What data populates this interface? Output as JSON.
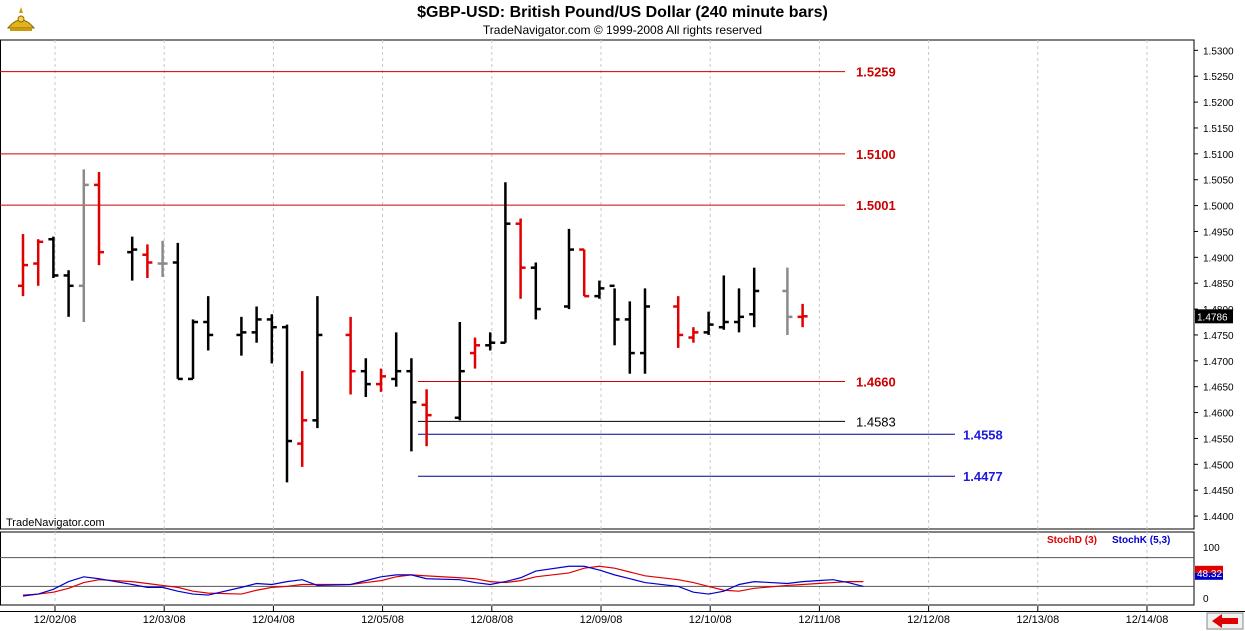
{
  "header": {
    "title": "$GBP-USD:  British Pound/US Dollar  (240 minute bars)",
    "subtitle": "TradeNavigator.com © 1999-2008 All rights reserved",
    "watermark": "TradeNavigator.com"
  },
  "colors": {
    "up": "#e00000",
    "down": "#000000",
    "neutral": "#8a8a8a",
    "stochD": "#e00000",
    "stochK": "#0000cc",
    "grid": "#c8c8c8",
    "level_red": "#cc0000",
    "level_black": "#000000",
    "level_blue": "#00008b",
    "label_blue": "#1a1adf"
  },
  "nav": {
    "arrow_icon": "red-left-arrow-icon"
  },
  "chart_data": {
    "type": "ohlc",
    "price_axis": {
      "min": 1.4375,
      "max": 1.532,
      "ticks": [
        "1.4400",
        "1.4450",
        "1.4500",
        "1.4550",
        "1.4600",
        "1.4650",
        "1.4700",
        "1.4750",
        "1.4800",
        "1.4850",
        "1.4900",
        "1.4950",
        "1.5000",
        "1.5050",
        "1.5100",
        "1.5150",
        "1.5200",
        "1.5250",
        "1.5300"
      ]
    },
    "current_price": {
      "label": "1.4786",
      "value": 1.4786
    },
    "x_axis": {
      "labels": [
        "12/02/08",
        "12/03/08",
        "12/04/08",
        "12/05/08",
        "12/08/08",
        "12/09/08",
        "12/10/08",
        "12/11/08",
        "12/12/08",
        "12/13/08",
        "12/14/08"
      ]
    },
    "bars": [
      {
        "d": 0,
        "i": 0,
        "o": 1.4845,
        "h": 1.4945,
        "l": 1.4825,
        "c": 1.4885,
        "col": "up"
      },
      {
        "d": 0,
        "i": 1,
        "o": 1.4888,
        "h": 1.4935,
        "l": 1.4845,
        "c": 1.493,
        "col": "up"
      },
      {
        "d": 0,
        "i": 2,
        "o": 1.4935,
        "h": 1.494,
        "l": 1.486,
        "c": 1.4865,
        "col": "down"
      },
      {
        "d": 0,
        "i": 3,
        "o": 1.4865,
        "h": 1.4875,
        "l": 1.4785,
        "c": 1.4845,
        "col": "down"
      },
      {
        "d": 0,
        "i": 4,
        "o": 1.4845,
        "h": 1.507,
        "l": 1.4775,
        "c": 1.504,
        "col": "neutral"
      },
      {
        "d": 0,
        "i": 5,
        "o": 1.504,
        "h": 1.5065,
        "l": 1.4885,
        "c": 1.491,
        "col": "up"
      },
      {
        "d": 1,
        "i": 0,
        "o": 1.491,
        "h": 1.494,
        "l": 1.4855,
        "c": 1.4915,
        "col": "down"
      },
      {
        "d": 1,
        "i": 1,
        "o": 1.4905,
        "h": 1.4925,
        "l": 1.486,
        "c": 1.489,
        "col": "up"
      },
      {
        "d": 1,
        "i": 2,
        "o": 1.4888,
        "h": 1.4932,
        "l": 1.4862,
        "c": 1.4888,
        "col": "neutral"
      },
      {
        "d": 1,
        "i": 3,
        "o": 1.489,
        "h": 1.4928,
        "l": 1.4665,
        "c": 1.4665,
        "col": "down"
      },
      {
        "d": 1,
        "i": 4,
        "o": 1.4665,
        "h": 1.478,
        "l": 1.4665,
        "c": 1.4775,
        "col": "down"
      },
      {
        "d": 1,
        "i": 5,
        "o": 1.4775,
        "h": 1.4825,
        "l": 1.472,
        "c": 1.475,
        "col": "down"
      },
      {
        "d": 2,
        "i": 0,
        "o": 1.475,
        "h": 1.4785,
        "l": 1.471,
        "c": 1.4755,
        "col": "down"
      },
      {
        "d": 2,
        "i": 1,
        "o": 1.4755,
        "h": 1.4805,
        "l": 1.4735,
        "c": 1.478,
        "col": "down"
      },
      {
        "d": 2,
        "i": 2,
        "o": 1.478,
        "h": 1.479,
        "l": 1.4695,
        "c": 1.4765,
        "col": "down"
      },
      {
        "d": 2,
        "i": 3,
        "o": 1.4765,
        "h": 1.477,
        "l": 1.4465,
        "c": 1.4545,
        "col": "down"
      },
      {
        "d": 2,
        "i": 4,
        "o": 1.454,
        "h": 1.468,
        "l": 1.4495,
        "c": 1.4585,
        "col": "up"
      },
      {
        "d": 2,
        "i": 5,
        "o": 1.4585,
        "h": 1.4825,
        "l": 1.457,
        "c": 1.475,
        "col": "down"
      },
      {
        "d": 3,
        "i": 0,
        "o": 1.475,
        "h": 1.4785,
        "l": 1.4635,
        "c": 1.468,
        "col": "up"
      },
      {
        "d": 3,
        "i": 1,
        "o": 1.468,
        "h": 1.4705,
        "l": 1.463,
        "c": 1.4655,
        "col": "down"
      },
      {
        "d": 3,
        "i": 2,
        "o": 1.4655,
        "h": 1.4685,
        "l": 1.464,
        "c": 1.467,
        "col": "up"
      },
      {
        "d": 3,
        "i": 3,
        "o": 1.4665,
        "h": 1.4755,
        "l": 1.465,
        "c": 1.468,
        "col": "down"
      },
      {
        "d": 3,
        "i": 4,
        "o": 1.468,
        "h": 1.4705,
        "l": 1.4525,
        "c": 1.462,
        "col": "down"
      },
      {
        "d": 3,
        "i": 5,
        "o": 1.4615,
        "h": 1.4645,
        "l": 1.4535,
        "c": 1.4595,
        "col": "up"
      },
      {
        "d": 4,
        "i": 0,
        "o": 1.459,
        "h": 1.4775,
        "l": 1.4585,
        "c": 1.468,
        "col": "down"
      },
      {
        "d": 4,
        "i": 1,
        "o": 1.4715,
        "h": 1.4745,
        "l": 1.4685,
        "c": 1.473,
        "col": "up"
      },
      {
        "d": 4,
        "i": 2,
        "o": 1.473,
        "h": 1.4755,
        "l": 1.472,
        "c": 1.4735,
        "col": "down"
      },
      {
        "d": 4,
        "i": 3,
        "o": 1.4735,
        "h": 1.5045,
        "l": 1.4735,
        "c": 1.4965,
        "col": "down"
      },
      {
        "d": 4,
        "i": 4,
        "o": 1.4965,
        "h": 1.4975,
        "l": 1.482,
        "c": 1.488,
        "col": "up"
      },
      {
        "d": 4,
        "i": 5,
        "o": 1.488,
        "h": 1.489,
        "l": 1.478,
        "c": 1.48,
        "col": "down"
      },
      {
        "d": 5,
        "i": 0,
        "o": 1.4805,
        "h": 1.4955,
        "l": 1.48,
        "c": 1.4915,
        "col": "down"
      },
      {
        "d": 5,
        "i": 1,
        "o": 1.4915,
        "h": 1.4915,
        "l": 1.4825,
        "c": 1.4825,
        "col": "up"
      },
      {
        "d": 5,
        "i": 2,
        "o": 1.4825,
        "h": 1.4855,
        "l": 1.482,
        "c": 1.484,
        "col": "down"
      },
      {
        "d": 5,
        "i": 3,
        "o": 1.4845,
        "h": 1.484,
        "l": 1.473,
        "c": 1.478,
        "col": "down"
      },
      {
        "d": 5,
        "i": 4,
        "o": 1.478,
        "h": 1.4815,
        "l": 1.4675,
        "c": 1.4715,
        "col": "down"
      },
      {
        "d": 5,
        "i": 5,
        "o": 1.4715,
        "h": 1.484,
        "l": 1.4675,
        "c": 1.4805,
        "col": "down"
      },
      {
        "d": 6,
        "i": 0,
        "o": 1.4805,
        "h": 1.4825,
        "l": 1.4725,
        "c": 1.475,
        "col": "up"
      },
      {
        "d": 6,
        "i": 1,
        "o": 1.4745,
        "h": 1.4765,
        "l": 1.4735,
        "c": 1.4755,
        "col": "up"
      },
      {
        "d": 6,
        "i": 2,
        "o": 1.4755,
        "h": 1.4795,
        "l": 1.475,
        "c": 1.477,
        "col": "down"
      },
      {
        "d": 6,
        "i": 3,
        "o": 1.4765,
        "h": 1.4865,
        "l": 1.476,
        "c": 1.4775,
        "col": "down"
      },
      {
        "d": 6,
        "i": 4,
        "o": 1.4775,
        "h": 1.484,
        "l": 1.4755,
        "c": 1.4785,
        "col": "down"
      },
      {
        "d": 6,
        "i": 5,
        "o": 1.479,
        "h": 1.488,
        "l": 1.4765,
        "c": 1.4835,
        "col": "down"
      },
      {
        "d": 7,
        "i": 0,
        "o": 1.4835,
        "h": 1.488,
        "l": 1.475,
        "c": 1.4785,
        "col": "neutral"
      },
      {
        "d": 7,
        "i": 1,
        "o": 1.4785,
        "h": 1.481,
        "l": 1.4765,
        "c": 1.4786,
        "col": "up"
      }
    ],
    "levels": [
      {
        "value": 1.5259,
        "label": "1.5259",
        "color": "level_red",
        "x0": 0,
        "x1": 845,
        "label_x": 856,
        "label_color": "level_red"
      },
      {
        "value": 1.51,
        "label": "1.5100",
        "color": "level_red",
        "x0": 0,
        "x1": 845,
        "label_x": 856,
        "label_color": "level_red"
      },
      {
        "value": 1.5001,
        "label": "1.5001",
        "color": "level_red",
        "x0": 0,
        "x1": 845,
        "label_x": 856,
        "label_color": "level_red"
      },
      {
        "value": 1.466,
        "label": "1.4660",
        "color": "level_red",
        "x0": 418,
        "x1": 845,
        "label_x": 856,
        "label_color": "level_red"
      },
      {
        "value": 1.4583,
        "label": "1.4583",
        "color": "level_black",
        "x0": 418,
        "x1": 845,
        "label_x": 856,
        "label_color": "level_black"
      },
      {
        "value": 1.4558,
        "label": "1.4558",
        "color": "level_blue",
        "x0": 418,
        "x1": 955,
        "label_x": 963,
        "label_color": "label_blue"
      },
      {
        "value": 1.4477,
        "label": "1.4477",
        "color": "level_blue",
        "x0": 418,
        "x1": 955,
        "label_x": 963,
        "label_color": "label_blue"
      }
    ],
    "indicator": {
      "legend_d": "StochD (3)",
      "legend_k": "StochK (5,3)",
      "ticks": [
        "100",
        "0"
      ],
      "levels": [
        80,
        20
      ],
      "current_label": "48.32",
      "current_value": 48.32,
      "stochD": [
        2,
        4,
        8,
        16,
        28,
        34,
        30,
        26,
        22,
        18,
        10,
        6,
        4,
        12,
        18,
        20,
        24,
        24,
        24,
        28,
        32,
        40,
        44,
        42,
        38,
        36,
        30,
        28,
        32,
        40,
        48,
        58,
        62,
        58,
        50,
        42,
        34,
        28,
        20,
        12,
        10,
        16,
        22,
        24,
        26,
        28,
        30,
        30
      ],
      "stochK": [
        0,
        4,
        14,
        30,
        40,
        36,
        24,
        18,
        18,
        10,
        4,
        2,
        18,
        26,
        24,
        30,
        34,
        22,
        24,
        32,
        40,
        44,
        44,
        36,
        34,
        28,
        24,
        30,
        38,
        52,
        62,
        62,
        54,
        44,
        36,
        28,
        20,
        8,
        4,
        10,
        24,
        30,
        26,
        30,
        32,
        34,
        28,
        20
      ]
    }
  }
}
